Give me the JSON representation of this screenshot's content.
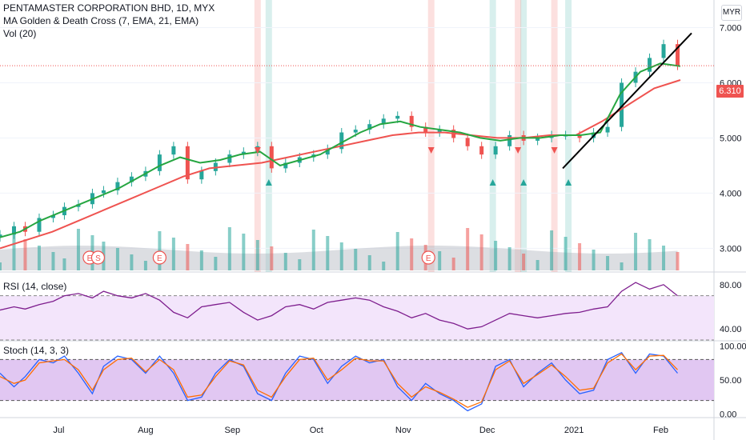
{
  "header": {
    "symbol_line": "PENTAMASTER CORPORATION BHD, 1D, MYX",
    "indicator_ma": "MA Golden & Death Cross (7, EMA, 21, EMA)",
    "indicator_vol": "Vol (20)",
    "currency_button": "MYR"
  },
  "last_price_label": "6.310",
  "panes": {
    "rsi_label": "RSI (14, close)",
    "stoch_label": "Stoch (14, 3, 3)"
  },
  "colors": {
    "up": "#26a69a",
    "down": "#ef5350",
    "fast_ema": "#26a641",
    "slow_ema": "#ef5350",
    "rsi_line": "#7e1e8e",
    "rsi_band": "#f3e5fb",
    "stoch_k": "#2962ff",
    "stoch_d": "#ff6d00",
    "stoch_band": "#e1c7f2",
    "trendline": "#000000",
    "grid": "#f0f3fa"
  },
  "chart_data": [
    {
      "type": "candlestick",
      "y_axis_ticks": [
        "7.000",
        "6.000",
        "5.000",
        "4.000",
        "3.000"
      ],
      "ylim": [
        2.6,
        7.5
      ],
      "x_axis_ticks": [
        "Jul",
        "Aug",
        "Sep",
        "Oct",
        "Nov",
        "Dec",
        "2021",
        "Feb"
      ],
      "x_dates": [
        "2020-06-10",
        "2020-06-15",
        "2020-06-19",
        "2020-06-24",
        "2020-06-29",
        "2020-07-03",
        "2020-07-08",
        "2020-07-13",
        "2020-07-17",
        "2020-07-22",
        "2020-07-27",
        "2020-08-01",
        "2020-08-06",
        "2020-08-11",
        "2020-08-16",
        "2020-08-21",
        "2020-08-26",
        "2020-08-31",
        "2020-09-05",
        "2020-09-10",
        "2020-09-15",
        "2020-09-20",
        "2020-09-25",
        "2020-09-30",
        "2020-10-05",
        "2020-10-10",
        "2020-10-15",
        "2020-10-20",
        "2020-10-25",
        "2020-10-30",
        "2020-11-04",
        "2020-11-09",
        "2020-11-14",
        "2020-11-19",
        "2020-11-24",
        "2020-11-29",
        "2020-12-04",
        "2020-12-09",
        "2020-12-14",
        "2020-12-19",
        "2020-12-24",
        "2020-12-29",
        "2021-01-03",
        "2021-01-08",
        "2021-01-13",
        "2021-01-18",
        "2021-01-23",
        "2021-01-28",
        "2021-02-02",
        "2021-02-07"
      ],
      "close": [
        3.25,
        3.4,
        3.3,
        3.55,
        3.6,
        3.75,
        3.8,
        4.0,
        4.05,
        4.2,
        4.3,
        4.4,
        4.7,
        4.85,
        4.25,
        4.4,
        4.55,
        4.7,
        4.75,
        4.85,
        4.45,
        4.55,
        4.65,
        4.7,
        4.8,
        5.1,
        5.15,
        5.25,
        5.35,
        5.4,
        5.2,
        5.1,
        5.15,
        5.0,
        4.85,
        4.7,
        4.85,
        5.05,
        4.95,
        5.0,
        5.05,
        5.05,
        5.0,
        5.1,
        5.2,
        6.0,
        6.2,
        6.45,
        6.7,
        6.31
      ],
      "fast_ema_label_points": [
        3.2,
        3.3,
        3.5,
        3.65,
        3.8,
        3.95,
        4.1,
        4.3,
        4.5,
        4.65,
        4.55,
        4.6,
        4.7,
        4.75,
        4.5,
        4.6,
        4.7,
        4.9,
        5.1,
        5.25,
        5.3,
        5.2,
        5.15,
        5.1,
        5.0,
        4.95,
        5.0,
        5.0,
        5.05,
        5.05,
        5.1,
        5.8,
        6.2,
        6.35,
        6.3
      ],
      "slow_ema_label_points": [
        3.0,
        3.15,
        3.3,
        3.5,
        3.7,
        3.9,
        4.1,
        4.3,
        4.45,
        4.5,
        4.55,
        4.65,
        4.75,
        4.85,
        4.95,
        5.05,
        5.1,
        5.1,
        5.05,
        5.0,
        5.0,
        5.05,
        5.05,
        5.3,
        5.6,
        5.9,
        6.05
      ],
      "trendline": {
        "start": [
          "2020-12-28",
          4.45
        ],
        "end": [
          "2021-02-12",
          6.9
        ]
      },
      "last_price": 6.31,
      "markers": {
        "golden_cross_dates": [
          "2020-09-14",
          "2020-12-03",
          "2020-12-14",
          "2020-12-30"
        ],
        "death_cross_dates": [
          "2020-09-10",
          "2020-11-11",
          "2020-12-12",
          "2020-12-25"
        ]
      },
      "events": [
        "E",
        "S",
        "E",
        "E"
      ]
    },
    {
      "type": "line",
      "title": "RSI (14, close)",
      "y_axis_ticks": [
        "80.00",
        "40.00"
      ],
      "ylim": [
        30,
        90
      ],
      "band": [
        30,
        70
      ],
      "values": [
        57,
        60,
        58,
        62,
        65,
        70,
        72,
        68,
        74,
        70,
        68,
        72,
        66,
        55,
        50,
        60,
        62,
        64,
        55,
        48,
        52,
        60,
        62,
        58,
        64,
        66,
        68,
        66,
        60,
        56,
        50,
        54,
        48,
        45,
        40,
        42,
        48,
        54,
        52,
        50,
        52,
        54,
        55,
        58,
        60,
        74,
        82,
        76,
        80,
        70
      ]
    },
    {
      "type": "line",
      "title": "Stoch (14, 3, 3)",
      "y_axis_ticks": [
        "100.00",
        "50.00",
        "0.00"
      ],
      "ylim": [
        -5,
        105
      ],
      "band": [
        20,
        80
      ],
      "series": [
        {
          "values": [
            60,
            40,
            55,
            80,
            75,
            85,
            60,
            30,
            70,
            85,
            80,
            60,
            85,
            60,
            20,
            25,
            60,
            80,
            70,
            30,
            20,
            60,
            85,
            80,
            45,
            70,
            85,
            75,
            80,
            40,
            20,
            45,
            30,
            20,
            5,
            15,
            70,
            80,
            40,
            60,
            75,
            50,
            30,
            35,
            80,
            90,
            60,
            88,
            85,
            60
          ]
        },
        {
          "values": [
            55,
            45,
            50,
            75,
            78,
            80,
            65,
            35,
            65,
            80,
            82,
            62,
            80,
            65,
            25,
            28,
            55,
            78,
            72,
            35,
            25,
            55,
            80,
            82,
            50,
            65,
            82,
            78,
            78,
            45,
            25,
            40,
            32,
            22,
            10,
            18,
            65,
            78,
            45,
            58,
            72,
            55,
            35,
            38,
            75,
            88,
            65,
            85,
            86,
            65
          ]
        }
      ]
    }
  ]
}
